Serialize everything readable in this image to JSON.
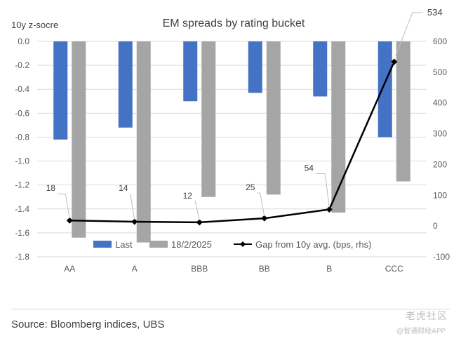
{
  "chart_data": {
    "type": "bar+line",
    "title": "EM spreads by rating bucket",
    "ylabel_left": "10y z-socre",
    "categories": [
      "AA",
      "A",
      "BBB",
      "BB",
      "B",
      "CCC"
    ],
    "y_left": {
      "min": -1.8,
      "max": 0.0,
      "ticks": [
        "0.0",
        "-0.2",
        "-0.4",
        "-0.6",
        "-0.8",
        "-1.0",
        "-1.2",
        "-1.4",
        "-1.6",
        "-1.8"
      ]
    },
    "y_right": {
      "min": -100,
      "max": 600,
      "ticks": [
        "600",
        "500",
        "400",
        "300",
        "200",
        "100",
        "0",
        "-100"
      ]
    },
    "series": [
      {
        "name": "Last",
        "type": "bar",
        "axis": "left",
        "color": "#4472C4",
        "values": [
          -0.82,
          -0.72,
          -0.5,
          -0.43,
          -0.46,
          -0.8
        ]
      },
      {
        "name": "18/2/2025",
        "type": "bar",
        "axis": "left",
        "color": "#A5A5A5",
        "values": [
          -1.64,
          -1.68,
          -1.3,
          -1.28,
          -1.43,
          -1.17
        ]
      },
      {
        "name": "Gap from 10y avg. (bps, rhs)",
        "type": "line",
        "axis": "right",
        "color": "#000000",
        "values": [
          18,
          14,
          12,
          25,
          54,
          534
        ],
        "labels": [
          "18",
          "14",
          "12",
          "25",
          "54",
          "534"
        ]
      }
    ],
    "legend_position": "bottom-inside"
  },
  "source": "Source: Bloomberg indices, UBS",
  "watermark": {
    "line1": "老虎社区",
    "line2": "@智通财经APP"
  }
}
